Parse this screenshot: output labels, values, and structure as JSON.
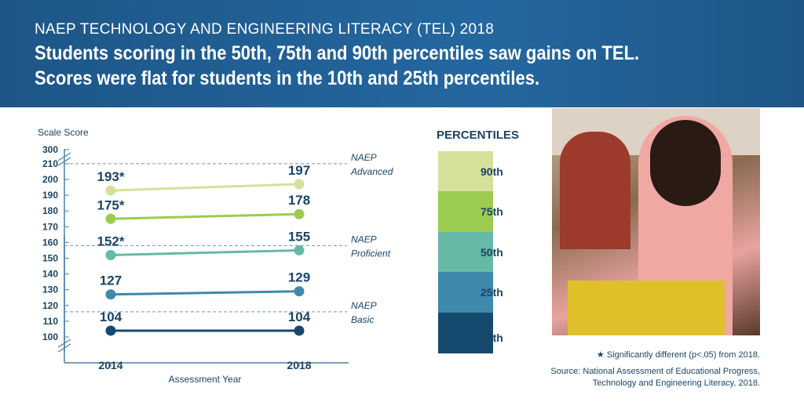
{
  "header": {
    "kicker": "NAEP TECHNOLOGY AND ENGINEERING LITERACY (TEL) 2018",
    "headline_1": "Students scoring in the 50th, 75th and 90th percentiles saw gains on TEL.",
    "headline_2": "Scores were flat for students in the 10th and 25th percentiles."
  },
  "chart_data": {
    "type": "line",
    "ylabel": "Scale Score",
    "xlabel": "Assessment Year",
    "categories": [
      "2014",
      "2018"
    ],
    "yticks": [
      100,
      110,
      120,
      130,
      140,
      150,
      160,
      170,
      180,
      190,
      200,
      210
    ],
    "ytick_top": "300",
    "ylim": [
      100,
      210
    ],
    "axis_break": true,
    "series": [
      {
        "name": "90th",
        "values": [
          193,
          197
        ],
        "labels": [
          "193*",
          "197"
        ],
        "color": "#d5e09a"
      },
      {
        "name": "75th",
        "values": [
          175,
          178
        ],
        "labels": [
          "175*",
          "178"
        ],
        "color": "#9ccc4f"
      },
      {
        "name": "50th",
        "values": [
          152,
          155
        ],
        "labels": [
          "152*",
          "155"
        ],
        "color": "#66b9a6"
      },
      {
        "name": "25th",
        "values": [
          127,
          129
        ],
        "labels": [
          "127",
          "129"
        ],
        "color": "#3f89ac"
      },
      {
        "name": "10th",
        "values": [
          104,
          104
        ],
        "labels": [
          "104",
          "104"
        ],
        "color": "#154a6e"
      }
    ],
    "reference_lines": [
      {
        "value": 210,
        "label_1": "NAEP",
        "label_2": "Advanced"
      },
      {
        "value": 158,
        "label_1": "NAEP",
        "label_2": "Proficient"
      },
      {
        "value": 116,
        "label_1": "NAEP",
        "label_2": "Basic"
      }
    ]
  },
  "legend": {
    "title": "PERCENTILES",
    "items": [
      "90th",
      "75th",
      "50th",
      "25th",
      "10th"
    ]
  },
  "footnote": "Significantly different (p<.05) from 2018.",
  "footnote_symbol": "★",
  "source_1": "Source: National Assessment of Educational Progress,",
  "source_2": "Technology and Engineering Literacy, 2018."
}
